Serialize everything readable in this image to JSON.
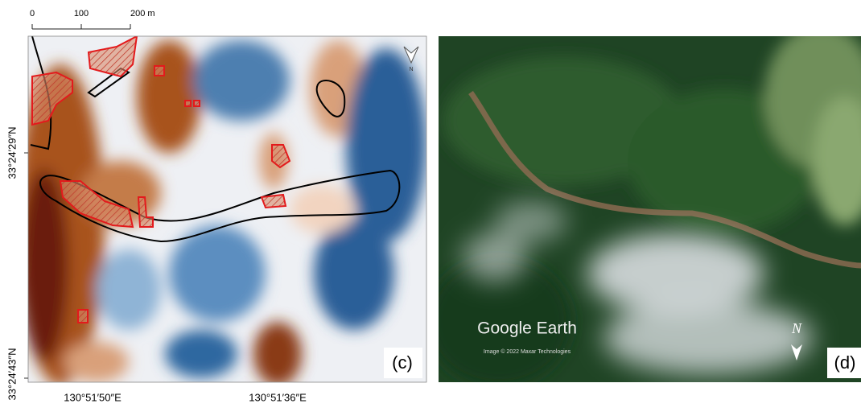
{
  "panel_c": {
    "scale_bar": [
      "0",
      "100",
      "200 m"
    ],
    "north_label": "N",
    "latitude_labels": [
      "33°24′29″N",
      "33°24′43″N"
    ],
    "longitude_labels": [
      "130°51′50″E",
      "130°51′36″E"
    ],
    "panel_label": "(c)"
  },
  "panel_d": {
    "watermark": "Google Earth",
    "credit": "Image © 2022 Maxar Technologies",
    "north_label": "N",
    "panel_label": "(d)"
  }
}
